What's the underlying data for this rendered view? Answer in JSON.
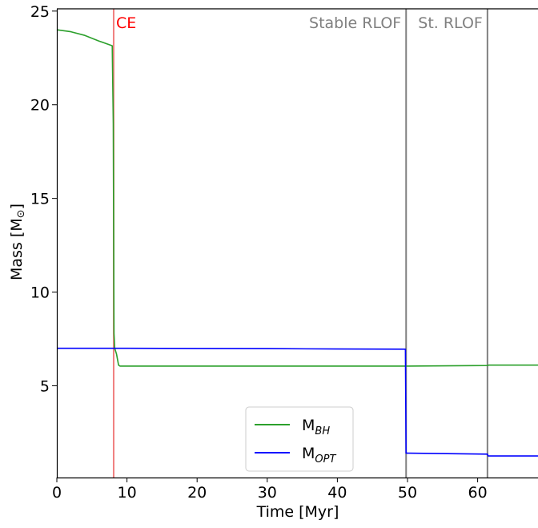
{
  "chart_data": {
    "type": "line",
    "xlabel": "Time [Myr]",
    "ylabel": "Mass [M",
    "ylabel_symbol": "⊙",
    "ylabel_close": "]",
    "xlim": [
      0,
      69
    ],
    "ylim": [
      0.1,
      25.2
    ],
    "xticks": [
      0,
      10,
      20,
      30,
      40,
      50,
      60
    ],
    "xtick_labels": [
      "0",
      "10",
      "20",
      "30",
      "40",
      "50",
      "60"
    ],
    "yticks": [
      5,
      10,
      15,
      20,
      25
    ],
    "ytick_labels": [
      "5",
      "10",
      "15",
      "20",
      "25"
    ],
    "grid": false,
    "legend_position": "bottom-center",
    "series": [
      {
        "name": "M",
        "subscript": "BH",
        "color": "#2ca02c",
        "x": [
          0,
          2,
          4,
          6,
          7.9,
          8.05,
          8.15,
          8.25,
          8.5,
          8.8,
          9,
          20,
          30,
          40,
          49.8,
          50,
          61.4,
          61.6,
          69
        ],
        "y": [
          24.0,
          23.9,
          23.7,
          23.4,
          23.15,
          19.0,
          7.8,
          7.0,
          6.7,
          6.1,
          6.05,
          6.05,
          6.05,
          6.05,
          6.05,
          6.05,
          6.08,
          6.1,
          6.1
        ]
      },
      {
        "name": "M",
        "subscript": "OPT",
        "color": "#0000ff",
        "x": [
          0,
          10,
          20,
          30,
          40,
          49.7,
          49.8,
          50,
          61.4,
          61.5,
          69
        ],
        "y": [
          7.0,
          7.0,
          6.99,
          6.98,
          6.96,
          6.95,
          1.4,
          1.4,
          1.35,
          1.25,
          1.25
        ]
      }
    ],
    "events": [
      {
        "x": 8.1,
        "label": "CE",
        "color": "#ff0000",
        "line_color": "#f08080",
        "label_side": "right"
      },
      {
        "x": 49.8,
        "label": "Stable RLOF",
        "color": "#808080",
        "line_color": "#808080",
        "label_side": "left"
      },
      {
        "x": 61.4,
        "label": "St. RLOF",
        "color": "#808080",
        "line_color": "#808080",
        "label_side": "left"
      }
    ]
  }
}
